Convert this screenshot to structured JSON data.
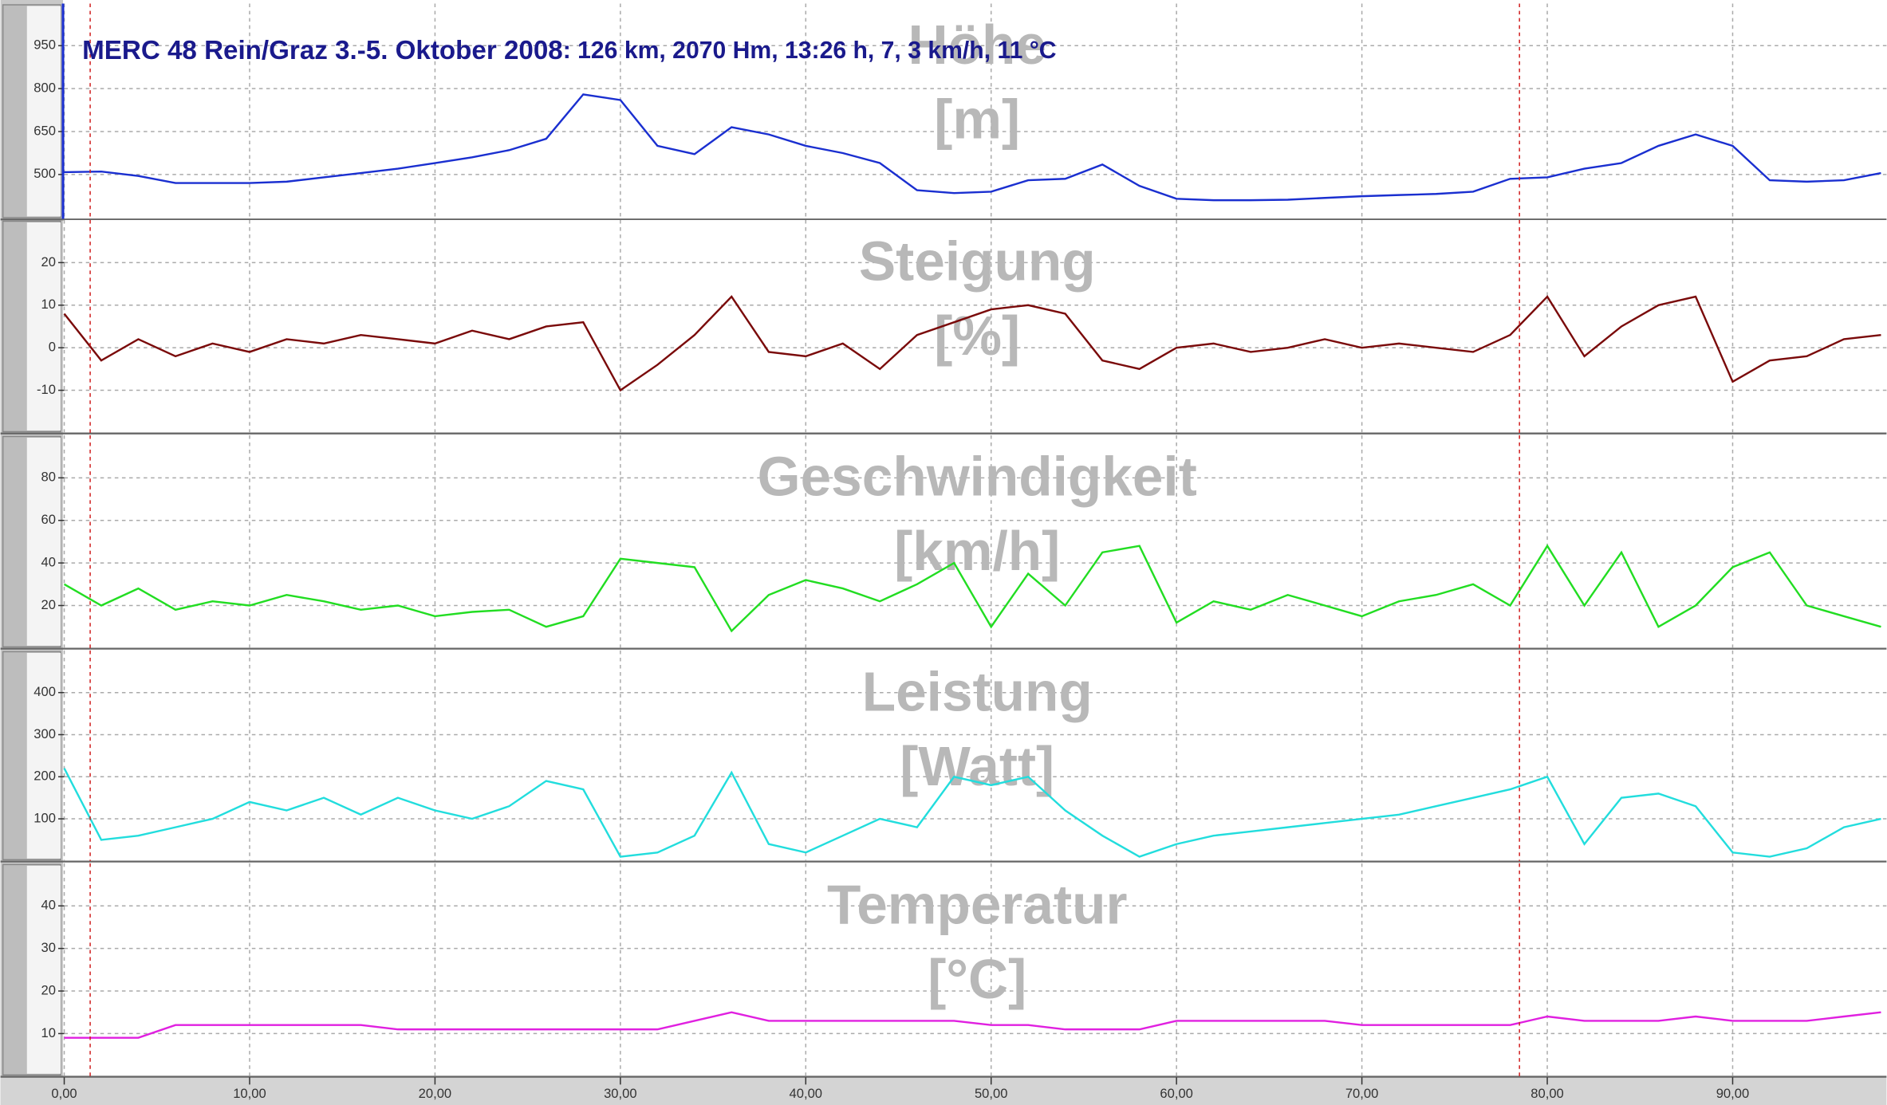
{
  "header": {
    "title": "MERC 48 Rein/Graz 3.-5. Oktober 2008",
    "stats": ": 126 km, 2070 Hm, 13:26 h, 7, 3 km/h, 11 °C"
  },
  "markers": [
    1.4,
    78.5
  ],
  "chart_data": [
    {
      "type": "line",
      "title": "Höhe",
      "unit": "[m]",
      "x": [
        0,
        2,
        4,
        6,
        8,
        10,
        12,
        14,
        16,
        18,
        20,
        22,
        24,
        26,
        28,
        30,
        32,
        34,
        36,
        38,
        40,
        42,
        44,
        46,
        48,
        50,
        52,
        54,
        56,
        58,
        60,
        62,
        64,
        66,
        68,
        70,
        72,
        74,
        76,
        78,
        80,
        82,
        84,
        86,
        88,
        90,
        92,
        94,
        96,
        98
      ],
      "series": [
        {
          "color": "#1a2fd0",
          "values": [
            508,
            510,
            495,
            470,
            470,
            470,
            475,
            490,
            505,
            520,
            540,
            560,
            585,
            625,
            780,
            760,
            600,
            571,
            665,
            640,
            600,
            575,
            540,
            445,
            435,
            440,
            480,
            485,
            535,
            460,
            415,
            410,
            410,
            412,
            418,
            424,
            428,
            432,
            440,
            485,
            490,
            520,
            540,
            600,
            640,
            600,
            480,
            475,
            480,
            505
          ]
        }
      ],
      "xlim": [
        0,
        98.3
      ],
      "ylim": [
        345,
        1097
      ],
      "yticks": [
        500,
        650,
        800,
        950
      ],
      "grid": true
    },
    {
      "type": "line",
      "title": "Steigung",
      "unit": "[%]",
      "x": [
        0,
        2,
        4,
        6,
        8,
        10,
        12,
        14,
        16,
        18,
        20,
        22,
        24,
        26,
        28,
        30,
        32,
        34,
        36,
        38,
        40,
        42,
        44,
        46,
        48,
        50,
        52,
        54,
        56,
        58,
        60,
        62,
        64,
        66,
        68,
        70,
        72,
        74,
        76,
        78,
        80,
        82,
        84,
        86,
        88,
        90,
        92,
        94,
        96,
        98
      ],
      "series": [
        {
          "color": "#7a0a0a",
          "values": [
            8,
            -3,
            2,
            -2,
            1,
            -1,
            2,
            1,
            3,
            2,
            1,
            4,
            2,
            5,
            6,
            -10,
            -4,
            3,
            12,
            -1,
            -2,
            1,
            -5,
            3,
            6,
            9,
            10,
            8,
            -3,
            -5,
            0,
            1,
            -1,
            0,
            2,
            0,
            1,
            0,
            -1,
            3,
            12,
            -2,
            5,
            10,
            12,
            -8,
            -3,
            -2,
            2,
            3
          ]
        }
      ],
      "xlim": [
        0,
        98.3
      ],
      "ylim": [
        -20,
        30
      ],
      "yticks": [
        -10,
        0,
        10,
        20
      ],
      "grid": true
    },
    {
      "type": "line",
      "title": "Geschwindigkeit",
      "unit": "[km/h]",
      "x": [
        0,
        2,
        4,
        6,
        8,
        10,
        12,
        14,
        16,
        18,
        20,
        22,
        24,
        26,
        28,
        30,
        32,
        34,
        36,
        38,
        40,
        42,
        44,
        46,
        48,
        50,
        52,
        54,
        56,
        58,
        60,
        62,
        64,
        66,
        68,
        70,
        72,
        74,
        76,
        78,
        80,
        82,
        84,
        86,
        88,
        90,
        92,
        94,
        96,
        98
      ],
      "series": [
        {
          "color": "#22dd22",
          "values": [
            30,
            20,
            28,
            18,
            22,
            20,
            25,
            22,
            18,
            20,
            15,
            17,
            18,
            10,
            15,
            42,
            40,
            38,
            8,
            25,
            32,
            28,
            22,
            30,
            40,
            10,
            35,
            20,
            45,
            48,
            12,
            22,
            18,
            25,
            20,
            15,
            22,
            25,
            30,
            20,
            48,
            20,
            45,
            10,
            20,
            38,
            45,
            20,
            15,
            10
          ]
        }
      ],
      "xlim": [
        0,
        98.3
      ],
      "ylim": [
        0,
        100
      ],
      "yticks": [
        20,
        40,
        60,
        80
      ],
      "grid": true
    },
    {
      "type": "line",
      "title": "Leistung",
      "unit": "[Watt]",
      "x": [
        0,
        2,
        4,
        6,
        8,
        10,
        12,
        14,
        16,
        18,
        20,
        22,
        24,
        26,
        28,
        30,
        32,
        34,
        36,
        38,
        40,
        42,
        44,
        46,
        48,
        50,
        52,
        54,
        56,
        58,
        60,
        62,
        64,
        66,
        68,
        70,
        72,
        74,
        76,
        78,
        80,
        82,
        84,
        86,
        88,
        90,
        92,
        94,
        96,
        98
      ],
      "series": [
        {
          "color": "#22dddd",
          "values": [
            220,
            50,
            60,
            80,
            100,
            140,
            120,
            150,
            110,
            150,
            120,
            100,
            130,
            190,
            170,
            10,
            20,
            60,
            210,
            40,
            20,
            60,
            100,
            80,
            200,
            180,
            200,
            120,
            60,
            10,
            40,
            60,
            70,
            80,
            90,
            100,
            110,
            130,
            150,
            170,
            200,
            40,
            150,
            160,
            130,
            20,
            10,
            30,
            80,
            100
          ]
        }
      ],
      "xlim": [
        0,
        98.3
      ],
      "ylim": [
        0,
        500
      ],
      "yticks": [
        100,
        200,
        300,
        400
      ],
      "grid": true
    },
    {
      "type": "line",
      "title": "Temperatur",
      "unit": "[°C]",
      "x": [
        0,
        2,
        4,
        6,
        8,
        10,
        12,
        14,
        16,
        18,
        20,
        22,
        24,
        26,
        28,
        30,
        32,
        34,
        36,
        38,
        40,
        42,
        44,
        46,
        48,
        50,
        52,
        54,
        56,
        58,
        60,
        62,
        64,
        66,
        68,
        70,
        72,
        74,
        76,
        78,
        80,
        82,
        84,
        86,
        88,
        90,
        92,
        94,
        96,
        98
      ],
      "series": [
        {
          "color": "#e020e0",
          "values": [
            9,
            9,
            9,
            12,
            12,
            12,
            12,
            12,
            12,
            11,
            11,
            11,
            11,
            11,
            11,
            11,
            11,
            13,
            15,
            13,
            13,
            13,
            13,
            13,
            13,
            12,
            12,
            11,
            11,
            11,
            13,
            13,
            13,
            13,
            13,
            12,
            12,
            12,
            12,
            12,
            14,
            13,
            13,
            13,
            14,
            13,
            13,
            13,
            14,
            15
          ]
        }
      ],
      "xlim": [
        0,
        98.3
      ],
      "ylim": [
        0,
        50
      ],
      "yticks": [
        10,
        20,
        30,
        40
      ],
      "grid": true,
      "xticks": [
        {
          "value": 0,
          "label": "0,00"
        },
        {
          "value": 10,
          "label": "10,00"
        },
        {
          "value": 20,
          "label": "20,00"
        },
        {
          "value": 30,
          "label": "30,00"
        },
        {
          "value": 40,
          "label": "40,00"
        },
        {
          "value": 50,
          "label": "50,00"
        },
        {
          "value": 60,
          "label": "60,00"
        },
        {
          "value": 70,
          "label": "70,00"
        },
        {
          "value": 80,
          "label": "80,00"
        },
        {
          "value": 90,
          "label": "90,00"
        }
      ]
    }
  ]
}
